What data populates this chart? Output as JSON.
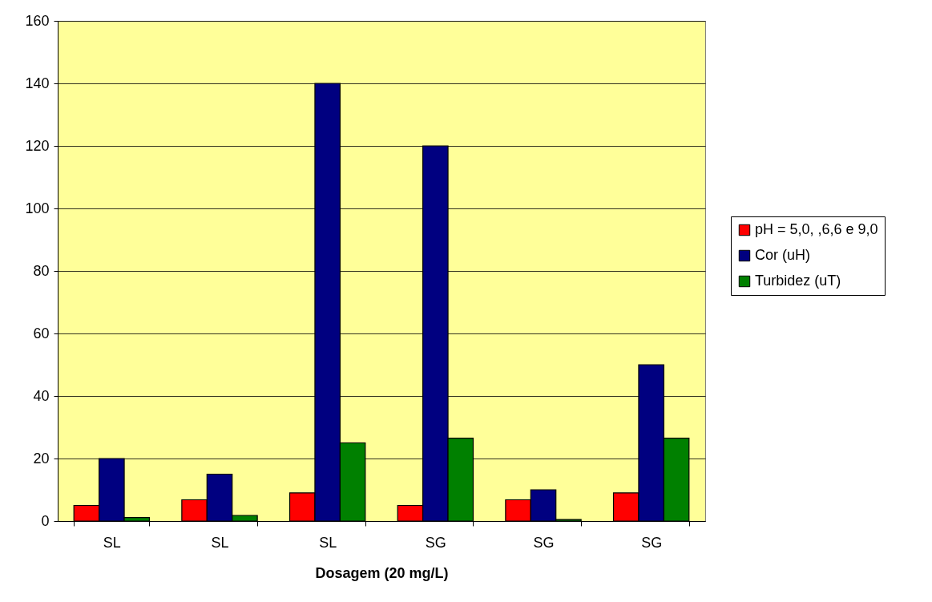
{
  "chart_data": {
    "type": "bar",
    "xlabel": "Dosagem (20 mg/L)",
    "categories": [
      "SL",
      "SL",
      "SL",
      "SG",
      "SG",
      "SG"
    ],
    "series": [
      {
        "name": "pH = 5,0, ,6,6 e 9,0",
        "color": "#ff0000",
        "values": [
          5,
          6.8,
          9,
          5,
          6.8,
          9
        ]
      },
      {
        "name": "Cor (uH)",
        "color": "#000080",
        "values": [
          20,
          15,
          140,
          120,
          10,
          50
        ]
      },
      {
        "name": "Turbidez (uT)",
        "color": "#008000",
        "values": [
          1.1,
          1.8,
          25,
          26.5,
          0.5,
          26.5
        ]
      }
    ],
    "ylim": [
      0,
      160
    ],
    "yticks": [
      0,
      20,
      40,
      60,
      80,
      100,
      120,
      140,
      160
    ],
    "grid": "y",
    "legend": "right"
  }
}
